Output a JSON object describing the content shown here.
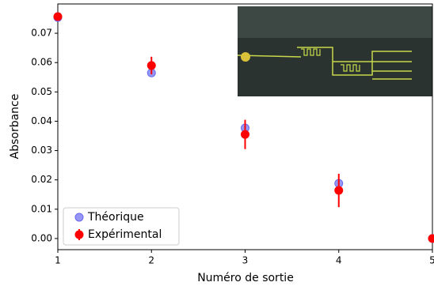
{
  "chart_data": {
    "type": "scatter",
    "x_label": "Numéro de sortie",
    "y_label": "Absorbance",
    "xlim": [
      1,
      5
    ],
    "ylim": [
      -0.0038,
      0.08
    ],
    "xticks": [
      1,
      2,
      3,
      4,
      5
    ],
    "yticks": [
      {
        "value": 0,
        "label": "0.00"
      },
      {
        "value": 0.01,
        "label": "0.01"
      },
      {
        "value": 0.02,
        "label": "0.02"
      },
      {
        "value": 0.03,
        "label": "0.03"
      },
      {
        "value": 0.04,
        "label": "0.04"
      },
      {
        "value": 0.05,
        "label": "0.05"
      },
      {
        "value": 0.06,
        "label": "0.06"
      },
      {
        "value": 0.07,
        "label": "0.07"
      }
    ],
    "legend": "lower left",
    "series": [
      {
        "name": "Théorique",
        "color": "#6a6af0",
        "x": [
          1,
          2,
          3,
          4,
          5
        ],
        "values": [
          0.0754,
          0.0565,
          0.0377,
          0.0188,
          0
        ]
      },
      {
        "name": "Expérimental",
        "color": "#ff0000",
        "x": [
          1,
          2,
          3,
          4,
          5
        ],
        "values": [
          0.0757,
          0.059,
          0.0355,
          0.0164,
          0
        ],
        "errors": [
          0,
          0.003,
          0.005,
          0.0057,
          0
        ]
      }
    ]
  }
}
